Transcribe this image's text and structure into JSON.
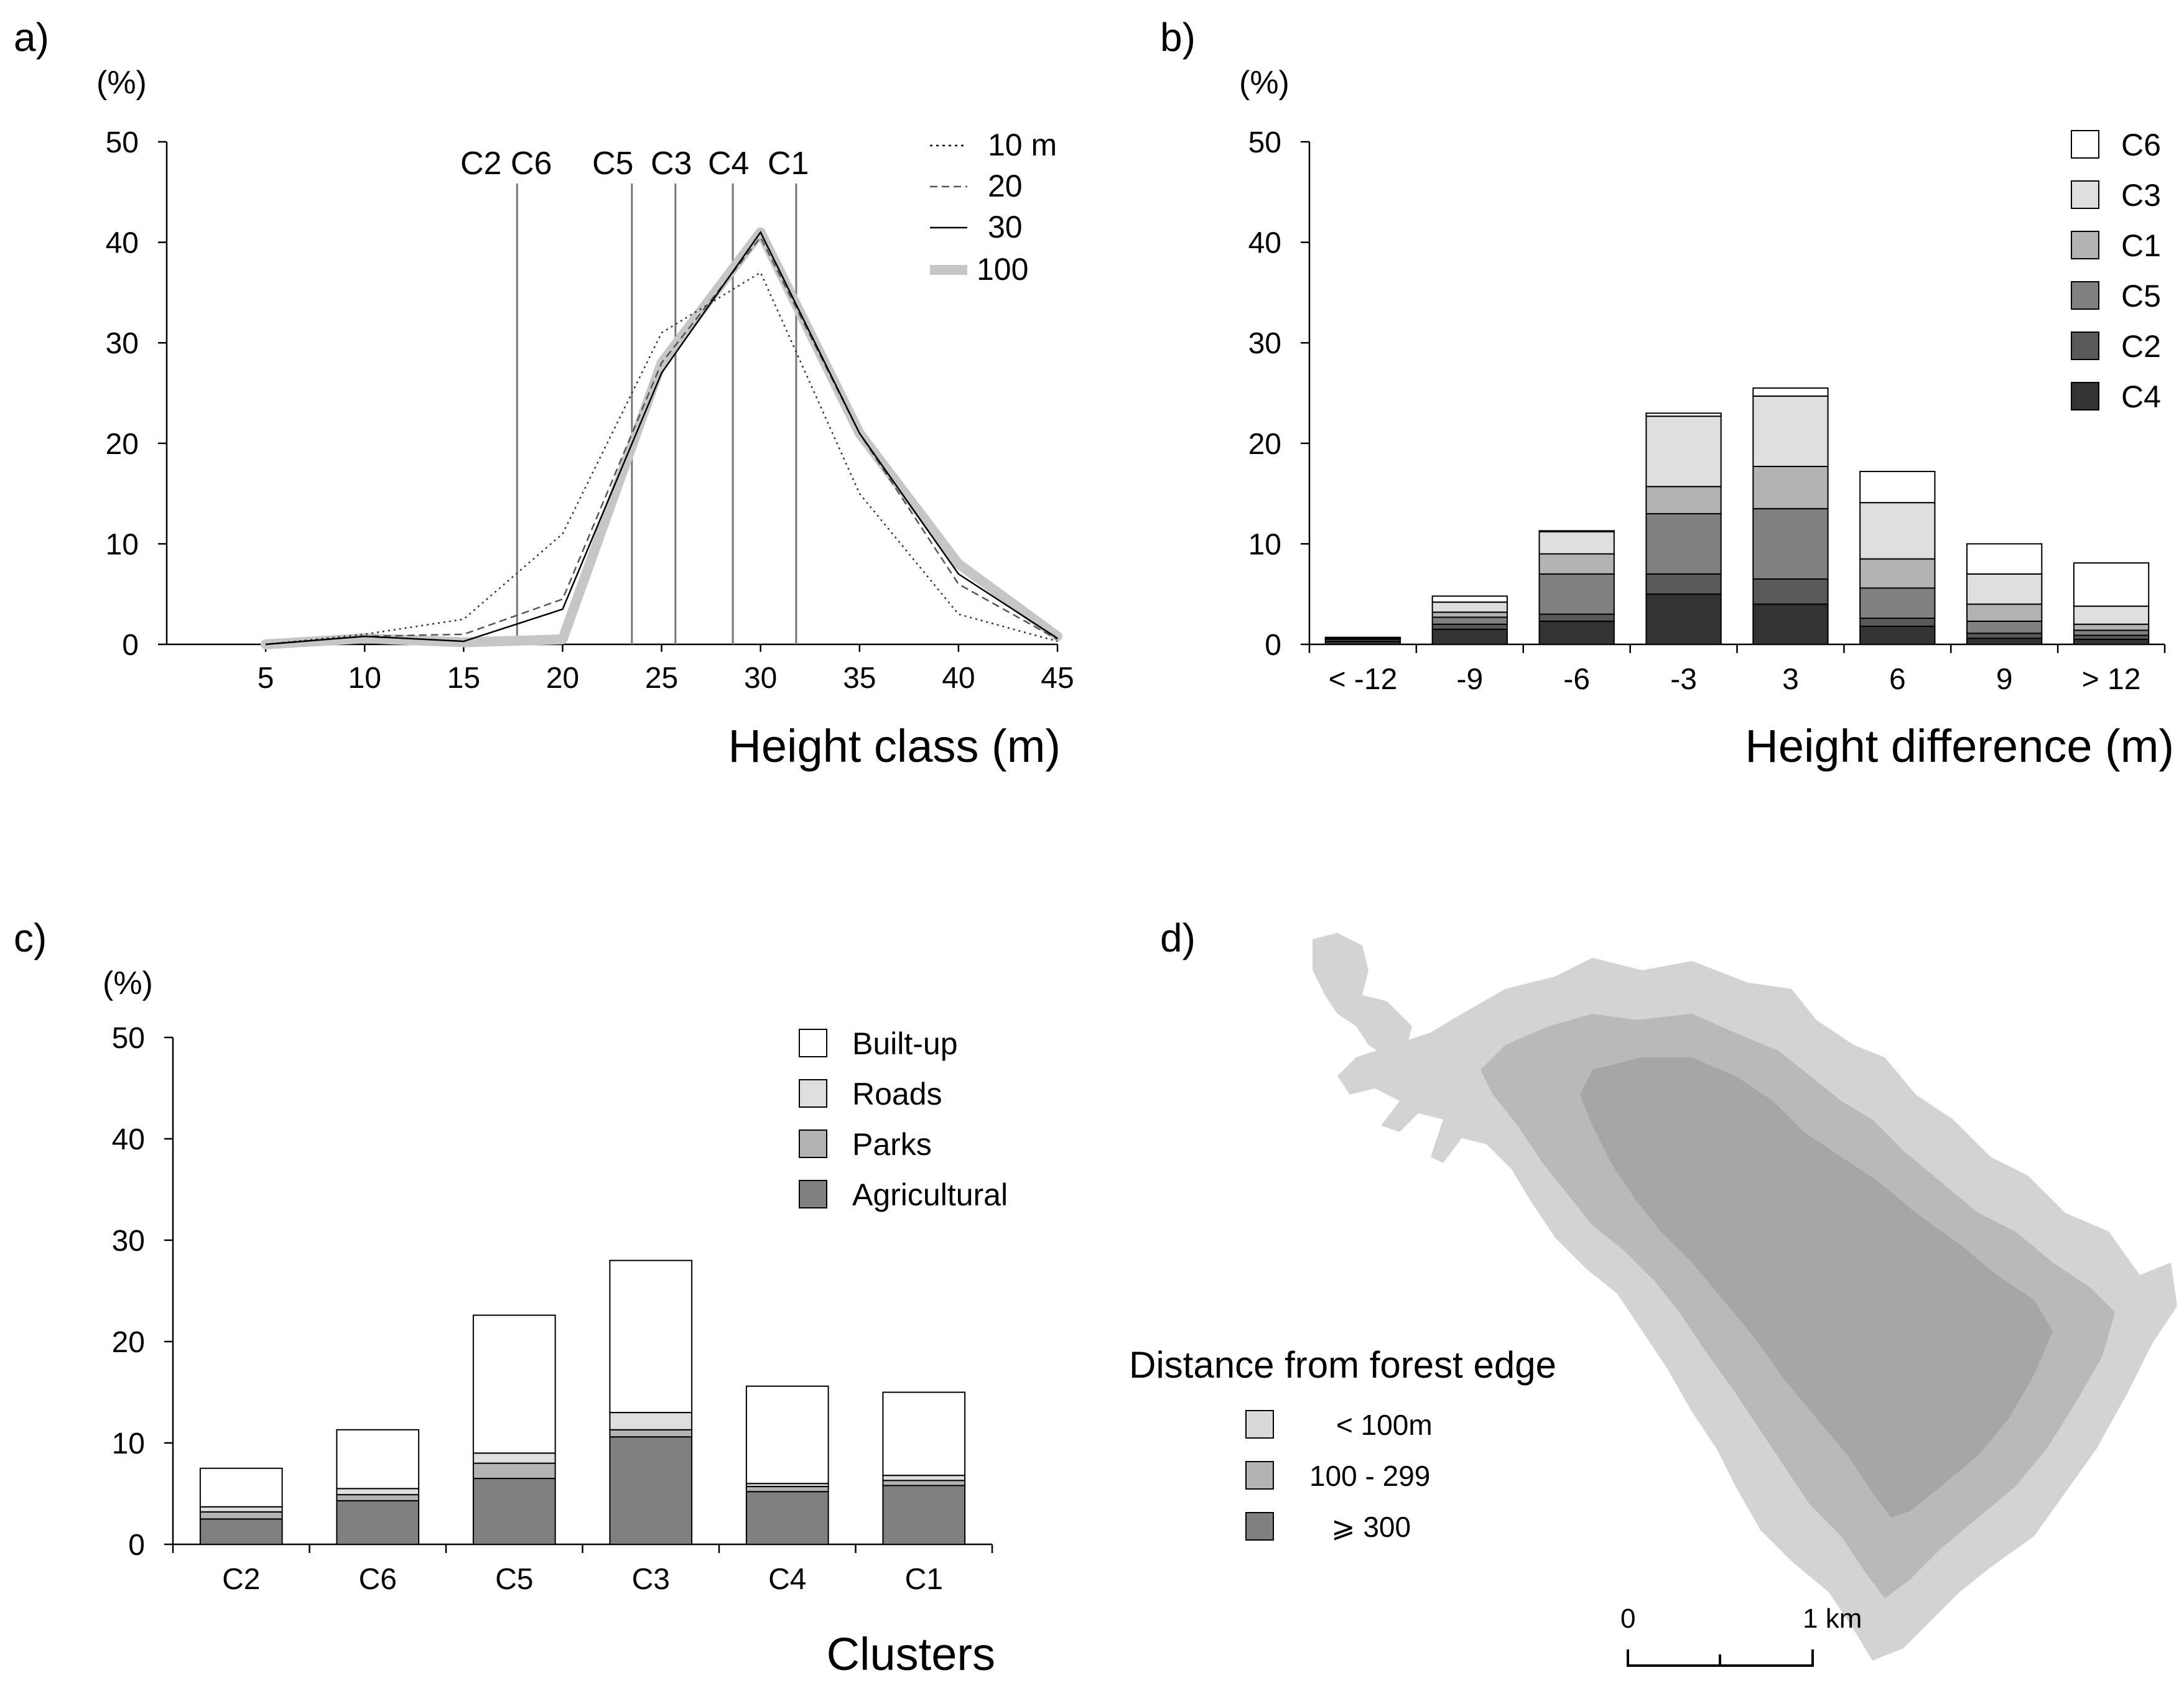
{
  "figure": {
    "panel_labels": [
      "a)",
      "b)",
      "c)",
      "d)"
    ]
  },
  "chart_data": [
    {
      "panel": "a)",
      "type": "line",
      "unit_label": "(%)",
      "xlabel": "Height class (m)",
      "ylabel": "",
      "ylim": [
        0,
        50
      ],
      "yticks": [
        "0",
        "10",
        "20",
        "30",
        "40",
        "50"
      ],
      "x": [
        5,
        10,
        15,
        20,
        25,
        30,
        35,
        40,
        45
      ],
      "xticks": [
        "5",
        "10",
        "15",
        "20",
        "25",
        "30",
        "35",
        "40",
        "45"
      ],
      "series": [
        {
          "name": "10 m",
          "style": "dotted",
          "values": [
            0,
            1.0,
            2.5,
            11,
            31,
            37,
            15,
            3,
            0.3
          ]
        },
        {
          "name": "20",
          "style": "dashed",
          "values": [
            0,
            0.8,
            1.0,
            4.5,
            28,
            40.5,
            21,
            6,
            0.5
          ]
        },
        {
          "name": "30",
          "style": "solid",
          "values": [
            0,
            0.8,
            0.3,
            3.5,
            27,
            41,
            21,
            7,
            0.6
          ]
        },
        {
          "name": "100",
          "style": "thick-grey",
          "values": [
            0,
            0.6,
            0.2,
            0.5,
            28,
            41,
            21,
            8,
            0.8
          ]
        }
      ],
      "cluster_markers": [
        {
          "label": "C2",
          "x": 17.7
        },
        {
          "label": "C6",
          "x": 17.7
        },
        {
          "label": "C5",
          "x": 23.5
        },
        {
          "label": "C3",
          "x": 25.7
        },
        {
          "label": "C4",
          "x": 28.6
        },
        {
          "label": "C1",
          "x": 31.8
        }
      ],
      "cluster_marker_labels": {
        "left": "C2 C6",
        "c5": "C5",
        "c3": "C3",
        "c4": "C4",
        "c1": "C1"
      }
    },
    {
      "panel": "b)",
      "type": "bar",
      "stacked": true,
      "unit_label": "(%)",
      "xlabel": "Height difference (m)",
      "ylim": [
        0,
        50
      ],
      "yticks": [
        "0",
        "10",
        "20",
        "30",
        "40",
        "50"
      ],
      "categories": [
        "< -12",
        "-9",
        "-6",
        "-3",
        "3",
        "6",
        "9",
        "> 12"
      ],
      "legend": [
        "C6",
        "C3",
        "C1",
        "C5",
        "C2",
        "C4"
      ],
      "series": [
        {
          "name": "C4",
          "color": "#333333",
          "values": [
            0.3,
            1.5,
            2.3,
            5.0,
            4.0,
            1.8,
            0.6,
            0.5
          ]
        },
        {
          "name": "C2",
          "color": "#595959",
          "values": [
            0.2,
            0.5,
            0.7,
            2.0,
            2.5,
            0.8,
            0.5,
            0.4
          ]
        },
        {
          "name": "C5",
          "color": "#808080",
          "values": [
            0.1,
            0.7,
            4.0,
            6.0,
            7.0,
            3.0,
            1.2,
            0.5
          ]
        },
        {
          "name": "C1",
          "color": "#b3b3b3",
          "values": [
            0.1,
            0.5,
            2.0,
            2.7,
            4.2,
            2.9,
            1.7,
            0.6
          ]
        },
        {
          "name": "C3",
          "color": "#dedede",
          "values": [
            0.0,
            1.0,
            2.2,
            7.0,
            7.0,
            5.6,
            3.0,
            1.8
          ]
        },
        {
          "name": "C6",
          "color": "#ffffff",
          "values": [
            0.0,
            0.6,
            0.1,
            0.3,
            0.8,
            3.1,
            3.0,
            4.3
          ]
        }
      ]
    },
    {
      "panel": "c)",
      "type": "bar",
      "stacked": true,
      "unit_label": "(%)",
      "xlabel": "Clusters",
      "ylim": [
        0,
        50
      ],
      "yticks": [
        "0",
        "10",
        "20",
        "30",
        "40",
        "50"
      ],
      "categories": [
        "C2",
        "C6",
        "C5",
        "C3",
        "C4",
        "C1"
      ],
      "legend": [
        "Built-up",
        "Roads",
        "Parks",
        "Agricultural"
      ],
      "series": [
        {
          "name": "Agricultural",
          "color": "#808080",
          "values": [
            2.5,
            4.3,
            6.5,
            10.6,
            5.2,
            5.8
          ]
        },
        {
          "name": "Parks",
          "color": "#b3b3b3",
          "values": [
            0.7,
            0.6,
            1.5,
            0.7,
            0.5,
            0.5
          ]
        },
        {
          "name": "Roads",
          "color": "#dedede",
          "values": [
            0.5,
            0.6,
            1.0,
            1.7,
            0.3,
            0.5
          ]
        },
        {
          "name": "Built-up",
          "color": "#ffffff",
          "values": [
            3.8,
            5.8,
            13.6,
            15.0,
            9.6,
            8.2
          ]
        }
      ]
    }
  ],
  "map": {
    "panel": "d)",
    "legend_title": "Distance from forest edge",
    "legend": [
      {
        "label": "< 100m",
        "color": "#d9d9d9"
      },
      {
        "label": "100 - 299",
        "color": "#b3b3b3"
      },
      {
        "label": "⩾ 300",
        "color": "#808080"
      }
    ],
    "map_colors": {
      "outer": "#d3d3d3",
      "middle": "#b9b9b9",
      "core": "#a6a6a6"
    },
    "scale_labels": {
      "start": "0",
      "end": "1 km"
    }
  }
}
